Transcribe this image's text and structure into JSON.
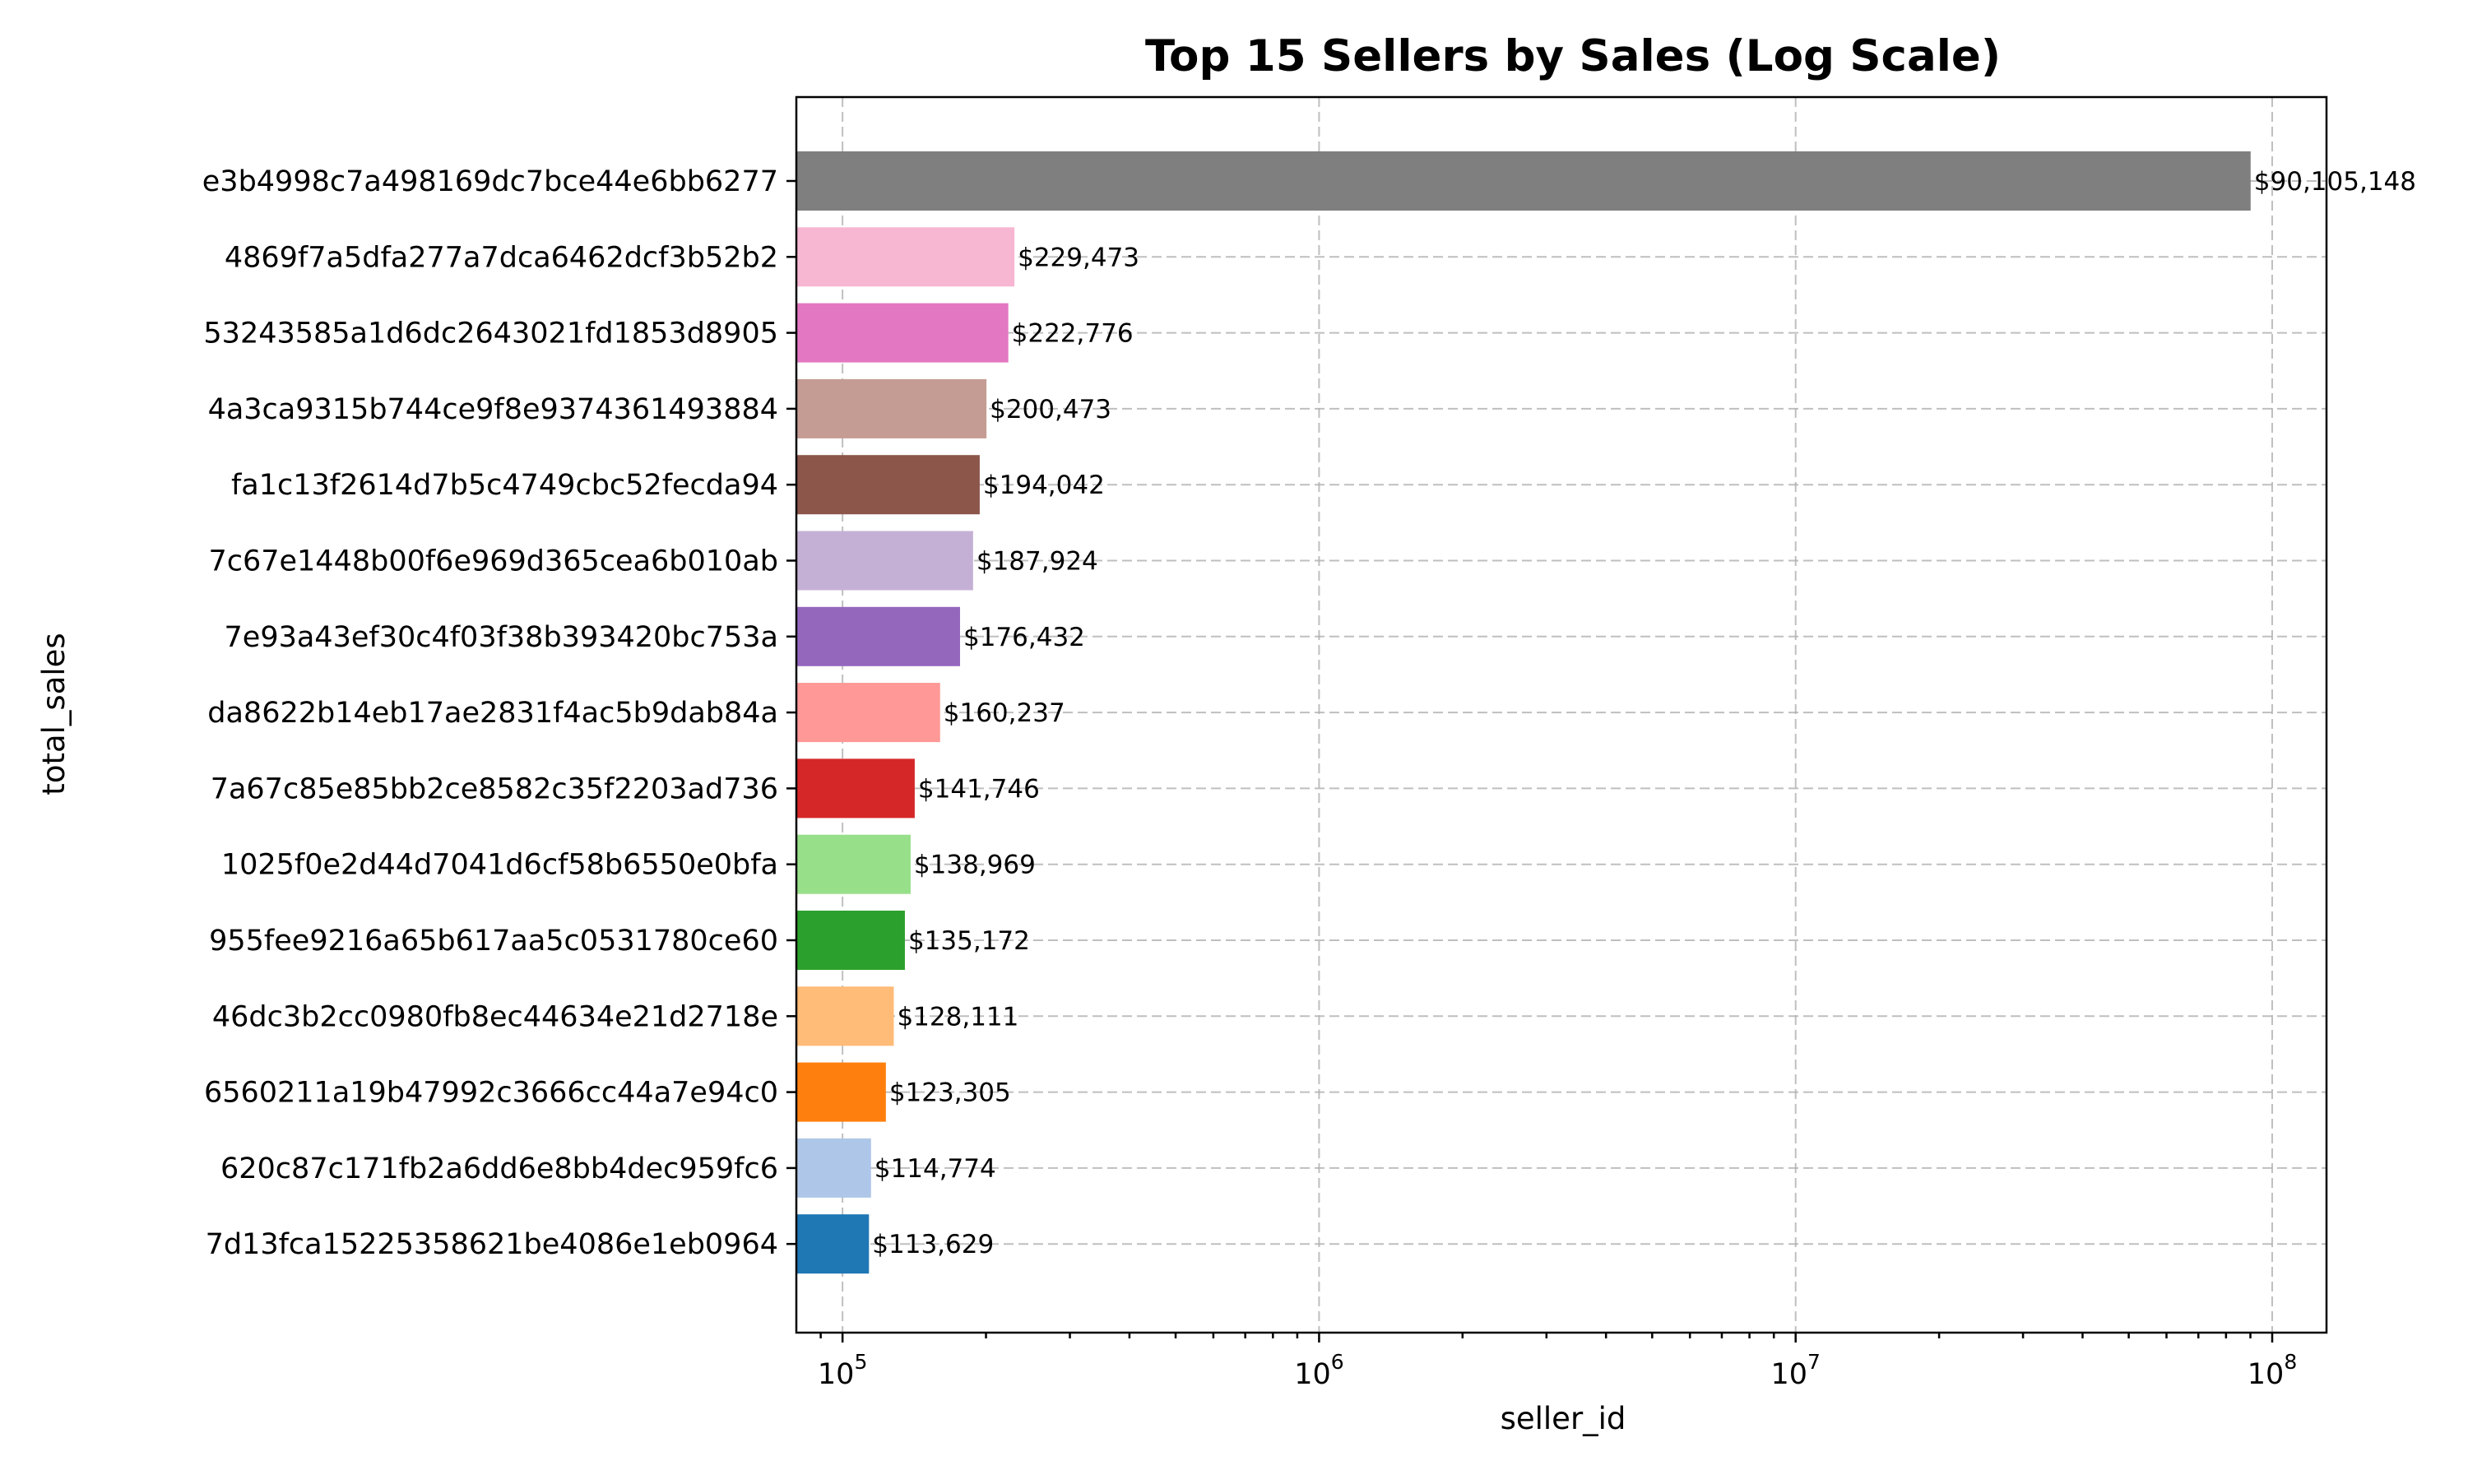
{
  "chart_data": {
    "type": "bar",
    "orientation": "horizontal",
    "title": "Top 15 Sellers by Sales (Log Scale)",
    "xlabel": "seller_id",
    "ylabel": "total_sales",
    "x_scale": "log",
    "xlim": [
      80000,
      130000000
    ],
    "x_ticks": [
      {
        "value": 100000,
        "base": "10",
        "exp": "5"
      },
      {
        "value": 1000000,
        "base": "10",
        "exp": "6"
      },
      {
        "value": 10000000,
        "base": "10",
        "exp": "7"
      },
      {
        "value": 100000000,
        "base": "10",
        "exp": "8"
      }
    ],
    "grid": true,
    "bars": [
      {
        "category": "e3b4998c7a498169dc7bce44e6bb6277",
        "value": 90105148,
        "label": "$90,105,148",
        "color": "#7f7f7f"
      },
      {
        "category": "4869f7a5dfa277a7dca6462dcf3b52b2",
        "value": 229473,
        "label": "$229,473",
        "color": "#f7b6d2"
      },
      {
        "category": "53243585a1d6dc2643021fd1853d8905",
        "value": 222776,
        "label": "$222,776",
        "color": "#e377c2"
      },
      {
        "category": "4a3ca9315b744ce9f8e9374361493884",
        "value": 200473,
        "label": "$200,473",
        "color": "#c49c94"
      },
      {
        "category": "fa1c13f2614d7b5c4749cbc52fecda94",
        "value": 194042,
        "label": "$194,042",
        "color": "#8c564b"
      },
      {
        "category": "7c67e1448b00f6e969d365cea6b010ab",
        "value": 187924,
        "label": "$187,924",
        "color": "#c5b0d5"
      },
      {
        "category": "7e93a43ef30c4f03f38b393420bc753a",
        "value": 176432,
        "label": "$176,432",
        "color": "#9467bd"
      },
      {
        "category": "da8622b14eb17ae2831f4ac5b9dab84a",
        "value": 160237,
        "label": "$160,237",
        "color": "#ff9896"
      },
      {
        "category": "7a67c85e85bb2ce8582c35f2203ad736",
        "value": 141746,
        "label": "$141,746",
        "color": "#d62728"
      },
      {
        "category": "1025f0e2d44d7041d6cf58b6550e0bfa",
        "value": 138969,
        "label": "$138,969",
        "color": "#98df8a"
      },
      {
        "category": "955fee9216a65b617aa5c0531780ce60",
        "value": 135172,
        "label": "$135,172",
        "color": "#2ca02c"
      },
      {
        "category": "46dc3b2cc0980fb8ec44634e21d2718e",
        "value": 128111,
        "label": "$128,111",
        "color": "#ffbb78"
      },
      {
        "category": "6560211a19b47992c3666cc44a7e94c0",
        "value": 123305,
        "label": "$123,305",
        "color": "#ff7f0e"
      },
      {
        "category": "620c87c171fb2a6dd6e8bb4dec959fc6",
        "value": 114774,
        "label": "$114,774",
        "color": "#aec7e8"
      },
      {
        "category": "7d13fca15225358621be4086e1eb0964",
        "value": 113629,
        "label": "$113,629",
        "color": "#1f77b4"
      }
    ]
  }
}
